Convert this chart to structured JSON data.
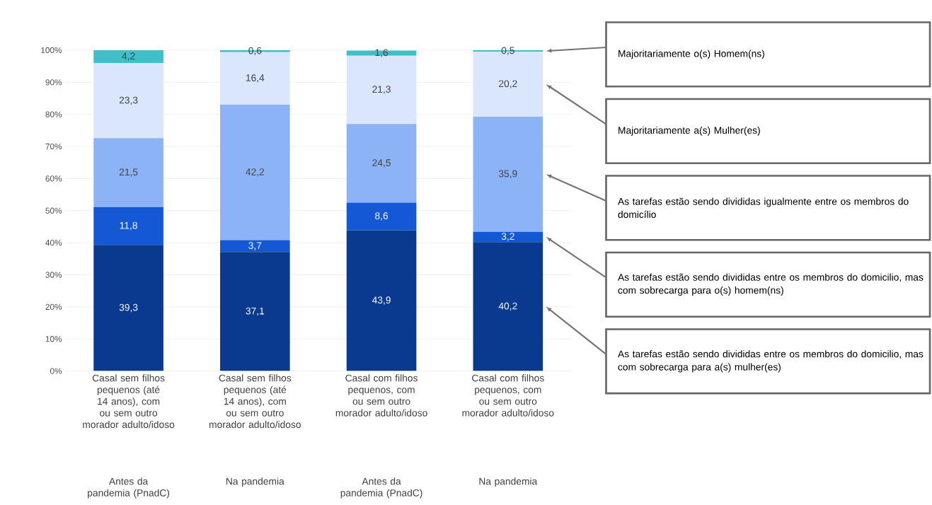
{
  "chart_data": {
    "type": "bar",
    "stacked": true,
    "categories": [
      "Casal sem filhos pequenos (até 14 anos), com ou sem outro morador adulto/idoso",
      "Casal sem filhos pequenos (até 14 anos), com ou sem outro morador adulto/idoso",
      "Casal com filhos pequenos, com ou sem outro morador adulto/idoso",
      "Casal com filhos pequenos, com ou sem outro morador adulto/idoso"
    ],
    "series": [
      {
        "name": "As tarefas estão sendo divididas entre os membros do domicilio, mas com sobrecarga para a(s) mulher(es)",
        "color": "#0a3a8f",
        "values": [
          39.3,
          37.1,
          43.9,
          40.2
        ],
        "value_labels": [
          "39,3",
          "37,1",
          "43,9",
          "40,2"
        ]
      },
      {
        "name": "As tarefas estão sendo divididas entre os membros do domicilio, mas com sobrecarga para o(s) homem(ns)",
        "color": "#1558d6",
        "values": [
          11.8,
          3.7,
          8.6,
          3.2
        ],
        "value_labels": [
          "11,8",
          "3,7",
          "8,6",
          "3,2"
        ]
      },
      {
        "name": "As tarefas estão sendo divididas igualmente entre os membros do domicílio",
        "color": "#8db3f7",
        "values": [
          21.5,
          42.2,
          24.5,
          35.9
        ],
        "value_labels": [
          "21,5",
          "42,2",
          "24,5",
          "35,9"
        ]
      },
      {
        "name": "Majoritariamente a(s) Mulher(es)",
        "color": "#d9e6fc",
        "values": [
          23.3,
          16.4,
          21.3,
          20.2
        ],
        "value_labels": [
          "23,3",
          "16,4",
          "21,3",
          "20,2"
        ]
      },
      {
        "name": "Majoritariamente o(s) Homem(ns)",
        "color": "#3fbfc7",
        "values": [
          4.2,
          0.6,
          1.6,
          0.5
        ],
        "value_labels": [
          "4,2",
          "0,6",
          "1,6",
          "0,5"
        ]
      }
    ],
    "ylim": [
      0,
      100
    ],
    "yticks": [
      {
        "value": 0,
        "label": "0%"
      },
      {
        "value": 10,
        "label": "10%"
      },
      {
        "value": 20,
        "label": "20%"
      },
      {
        "value": 30,
        "label": "30%"
      },
      {
        "value": 40,
        "label": "40%"
      },
      {
        "value": 50,
        "label": "50%"
      },
      {
        "value": 60,
        "label": "60%"
      },
      {
        "value": 70,
        "label": "70%"
      },
      {
        "value": 80,
        "label": "80%"
      },
      {
        "value": 90,
        "label": "90%"
      },
      {
        "value": 100,
        "label": "100%"
      }
    ],
    "grid": "y",
    "legend": "right",
    "annotations": [
      "Antes da pandemia (PnadC)",
      "Na pandemia",
      "Antes da pandemia (PnadC)",
      "Na pandemia"
    ]
  }
}
